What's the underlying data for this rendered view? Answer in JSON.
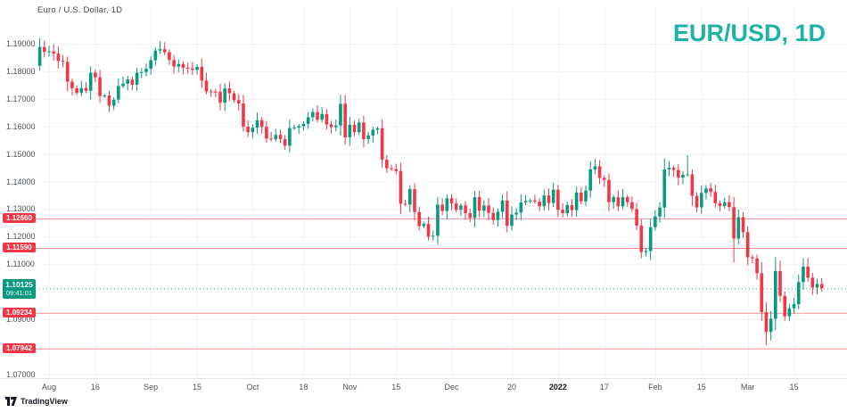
{
  "header": {
    "legend": "Euro / U.S. Dollar, 1D"
  },
  "watermark": "EUR/USD, 1D",
  "footer": {
    "brand": "TradingView"
  },
  "colors": {
    "up": "#089981",
    "down": "#f23645",
    "grid": "#f0f3fa",
    "axis_separator": "#e0e3eb",
    "axis_text": "#4c525e",
    "axis_text_major": "#131722",
    "watermark": "#1cb2a6",
    "price_line": "#f23645",
    "current_line": "#089981",
    "chip_text": "#ffffff"
  },
  "chart_data": {
    "type": "candlestick",
    "title": "Euro / U.S. Dollar, 1D",
    "symbol": "EUR/USD",
    "interval": "1D",
    "legend_position": "top-left",
    "grid": true,
    "y_axis": {
      "side": "left",
      "min": 1.07,
      "max": 1.19,
      "tick_step": 0.01,
      "tick_labels": [
        "1.19000",
        "1.18000",
        "1.17000",
        "1.16000",
        "1.15000",
        "1.14000",
        "1.13000",
        "1.12000",
        "1.11000",
        "1.10000",
        "1.09000",
        "1.08000",
        "1.07000"
      ]
    },
    "x_axis": {
      "side": "bottom",
      "ticks": [
        {
          "label": "Aug",
          "index": 2
        },
        {
          "label": "16",
          "index": 12
        },
        {
          "label": "Sep",
          "index": 24
        },
        {
          "label": "15",
          "index": 34
        },
        {
          "label": "Oct",
          "index": 46
        },
        {
          "label": "18",
          "index": 57
        },
        {
          "label": "Nov",
          "index": 67
        },
        {
          "label": "15",
          "index": 77
        },
        {
          "label": "Dec",
          "index": 89
        },
        {
          "label": "20",
          "index": 102
        },
        {
          "label": "2022",
          "index": 112,
          "major": true
        },
        {
          "label": "17",
          "index": 122
        },
        {
          "label": "Feb",
          "index": 133
        },
        {
          "label": "15",
          "index": 143
        },
        {
          "label": "Mar",
          "index": 153
        },
        {
          "label": "15",
          "index": 163
        }
      ]
    },
    "price_lines": [
      {
        "label": "1.12660",
        "value": 1.1266
      },
      {
        "label": "1.11590",
        "value": 1.1159
      },
      {
        "label": "1.09234",
        "value": 1.09234
      },
      {
        "label": "1.07942",
        "value": 1.07942
      }
    ],
    "current_price": {
      "label": "1.10125",
      "value": 1.10125,
      "countdown": "09:41:01"
    },
    "candles": {
      "first_open": 1.182,
      "closes": [
        1.1888,
        1.187,
        1.1872,
        1.1864,
        1.1838,
        1.1834,
        1.1762,
        1.1738,
        1.1721,
        1.1739,
        1.1729,
        1.1795,
        1.1778,
        1.171,
        1.1712,
        1.1675,
        1.1697,
        1.1746,
        1.1755,
        1.177,
        1.1751,
        1.1795,
        1.1797,
        1.1809,
        1.184,
        1.1875,
        1.188,
        1.1869,
        1.1841,
        1.1817,
        1.1826,
        1.1813,
        1.181,
        1.1805,
        1.1816,
        1.1766,
        1.1727,
        1.1726,
        1.1725,
        1.1686,
        1.1738,
        1.172,
        1.1695,
        1.1683,
        1.1599,
        1.1579,
        1.1595,
        1.1622,
        1.1598,
        1.1556,
        1.1553,
        1.1569,
        1.1554,
        1.153,
        1.1594,
        1.1596,
        1.1601,
        1.1609,
        1.1633,
        1.1652,
        1.1624,
        1.1645,
        1.1607,
        1.1597,
        1.1603,
        1.1682,
        1.156,
        1.1606,
        1.1579,
        1.1614,
        1.1554,
        1.1567,
        1.1588,
        1.1593,
        1.1479,
        1.1448,
        1.1445,
        1.1438,
        1.1319,
        1.1316,
        1.1372,
        1.1289,
        1.1238,
        1.1246,
        1.12,
        1.1203,
        1.1316,
        1.1293,
        1.1339,
        1.132,
        1.1297,
        1.1313,
        1.1285,
        1.1268,
        1.1343,
        1.1294,
        1.1313,
        1.1286,
        1.126,
        1.129,
        1.1331,
        1.1239,
        1.128,
        1.1287,
        1.1324,
        1.1329,
        1.1331,
        1.1327,
        1.131,
        1.1349,
        1.1322,
        1.137,
        1.1297,
        1.1285,
        1.1314,
        1.1296,
        1.136,
        1.1328,
        1.1367,
        1.1444,
        1.1455,
        1.1413,
        1.1406,
        1.1325,
        1.1343,
        1.131,
        1.1343,
        1.1325,
        1.13,
        1.124,
        1.1144,
        1.1148,
        1.1234,
        1.1273,
        1.1305,
        1.1444,
        1.145,
        1.1442,
        1.1414,
        1.1424,
        1.1426,
        1.1348,
        1.1306,
        1.1358,
        1.1375,
        1.1362,
        1.1321,
        1.1311,
        1.1325,
        1.1307,
        1.1193,
        1.127,
        1.1216,
        1.1125,
        1.1121,
        1.1067,
        1.0926,
        1.0854,
        1.0902,
        1.1075,
        1.0985,
        1.0911,
        1.094,
        1.0955,
        1.1035,
        1.1091,
        1.1051,
        1.1015,
        1.1028,
        1.10125
      ],
      "high_overrides": {
        "26": 1.1909,
        "120": 1.1483,
        "140": 1.1495
      },
      "low_overrides": {
        "84": 1.1186,
        "150": 1.1106,
        "157": 1.0806
      }
    }
  }
}
